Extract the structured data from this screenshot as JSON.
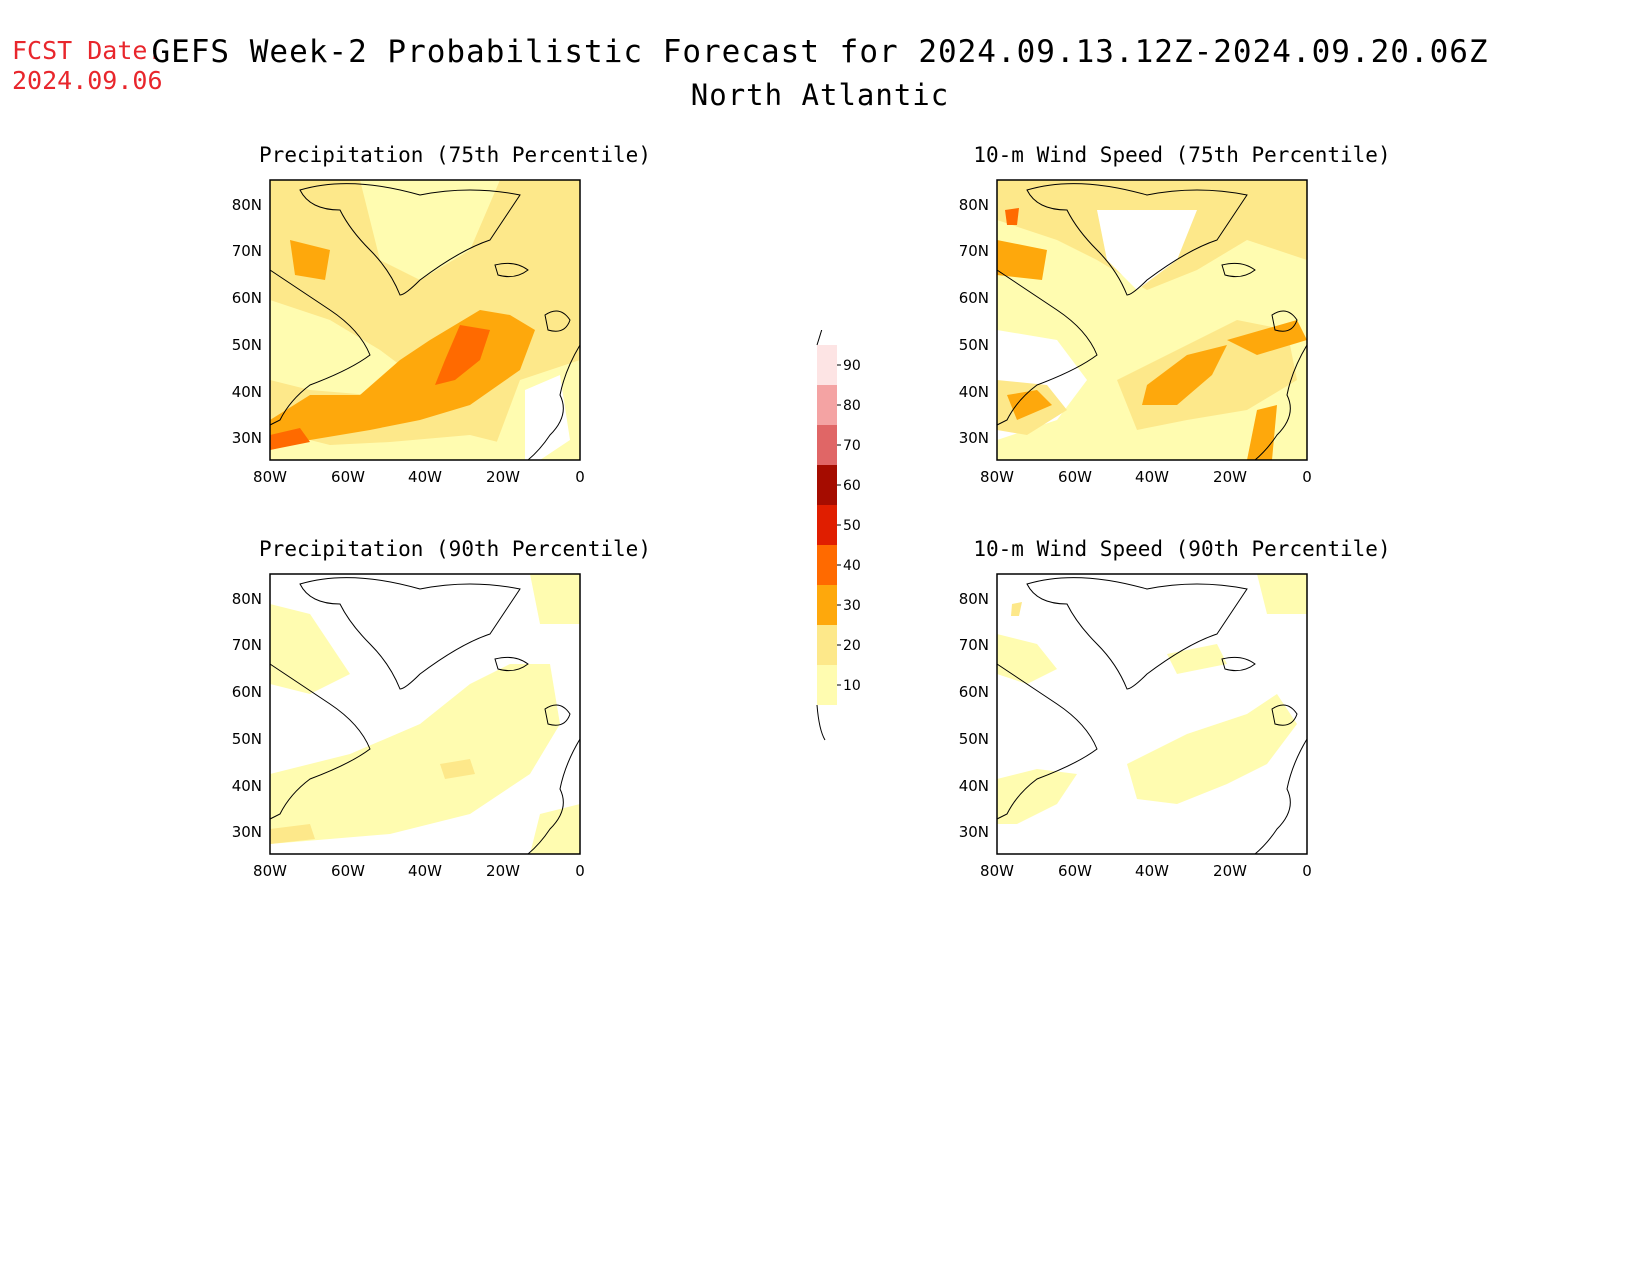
{
  "header": {
    "fcst_label": "FCST Date:",
    "fcst_date": "2024.09.06",
    "title": "GEFS Week-2 Probabilistic Forecast for 2024.09.13.12Z-2024.09.20.06Z",
    "region": "North Atlantic"
  },
  "panels": [
    {
      "title": "Precipitation (75th Percentile)"
    },
    {
      "title": "10-m Wind Speed (75th Percentile)"
    },
    {
      "title": "Precipitation (90th Percentile)"
    },
    {
      "title": "10-m Wind Speed (90th Percentile)"
    }
  ],
  "axes": {
    "lat_labels": [
      "80N",
      "70N",
      "60N",
      "50N",
      "40N",
      "30N"
    ],
    "lon_labels": [
      "80W",
      "60W",
      "40W",
      "20W",
      "0"
    ]
  },
  "colorbar": {
    "levels": [
      "10",
      "20",
      "30",
      "40",
      "50",
      "60",
      "70",
      "80",
      "90"
    ],
    "colors": [
      "#fffcb0",
      "#fde88a",
      "#fea80c",
      "#ff6a00",
      "#e01e00",
      "#a50c00",
      "#e06666",
      "#f4a3a3",
      "#fde4e4"
    ]
  }
}
